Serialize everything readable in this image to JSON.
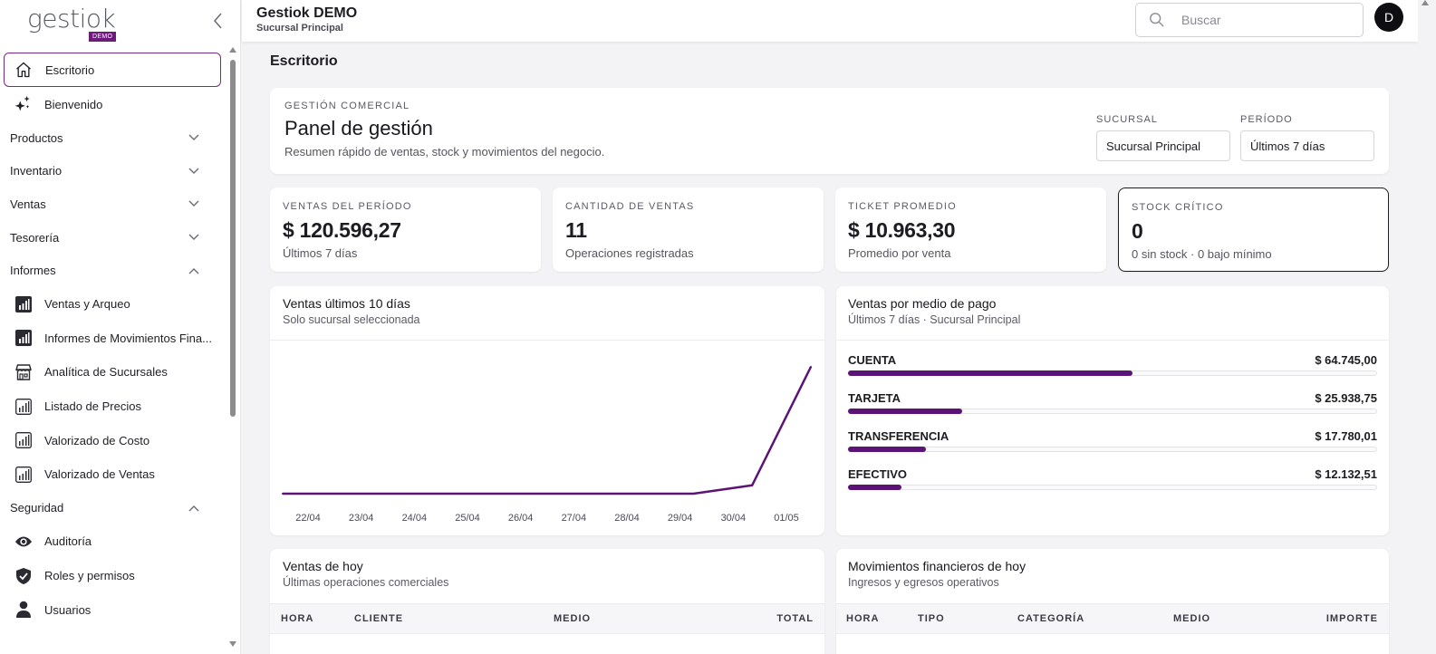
{
  "app": {
    "logo_text": "gestiok",
    "logo_badge": "DEMO",
    "title": "Gestiok DEMO",
    "subtitle": "Sucursal Principal",
    "avatar_initial": "D"
  },
  "search": {
    "placeholder": "Buscar"
  },
  "sidebar": {
    "items": [
      {
        "label": "Escritorio",
        "icon": "home-icon",
        "active": true
      },
      {
        "label": "Bienvenido",
        "icon": "sparkles-icon"
      }
    ],
    "groups": [
      {
        "label": "Productos",
        "expanded": false
      },
      {
        "label": "Inventario",
        "expanded": false
      },
      {
        "label": "Ventas",
        "expanded": false
      },
      {
        "label": "Tesorería",
        "expanded": false
      },
      {
        "label": "Informes",
        "expanded": true,
        "items": [
          {
            "label": "Ventas y Arqueo",
            "icon": "bar-chart-filled-icon"
          },
          {
            "label": "Informes de Movimientos Fina...",
            "icon": "bar-chart-filled-icon"
          },
          {
            "label": "Analítica de Sucursales",
            "icon": "store-icon"
          },
          {
            "label": "Listado de Precios",
            "icon": "bar-chart-outline-icon"
          },
          {
            "label": "Valorizado de Costo",
            "icon": "bar-chart-outline-icon"
          },
          {
            "label": "Valorizado de Ventas",
            "icon": "bar-chart-outline-icon"
          }
        ]
      },
      {
        "label": "Seguridad",
        "expanded": true,
        "items": [
          {
            "label": "Auditoría",
            "icon": "eye-icon"
          },
          {
            "label": "Roles y permisos",
            "icon": "shield-check-icon"
          },
          {
            "label": "Usuarios",
            "icon": "user-icon"
          }
        ]
      }
    ]
  },
  "page": {
    "title": "Escritorio"
  },
  "panel": {
    "eyebrow": "GESTIÓN COMERCIAL",
    "title": "Panel de gestión",
    "description": "Resumen rápido de ventas, stock y movimientos del negocio.",
    "sucursal_label": "SUCURSAL",
    "sucursal_value": "Sucursal Principal",
    "periodo_label": "PERÍODO",
    "periodo_value": "Últimos 7 días"
  },
  "kpis": [
    {
      "label": "VENTAS DEL PERÍODO",
      "value": "$ 120.596,27",
      "sub": "Últimos 7 días"
    },
    {
      "label": "CANTIDAD DE VENTAS",
      "value": "11",
      "sub": "Operaciones registradas"
    },
    {
      "label": "TICKET PROMEDIO",
      "value": "$ 10.963,30",
      "sub": "Promedio por venta"
    },
    {
      "label": "STOCK CRÍTICO",
      "value": "0",
      "sub": "0 sin stock · 0 bajo mínimo"
    }
  ],
  "sales_chart": {
    "title": "Ventas últimos 10 días",
    "subtitle": "Solo sucursal seleccionada"
  },
  "chart_data": {
    "type": "line",
    "title": "Ventas últimos 10 días",
    "subtitle": "Solo sucursal seleccionada",
    "categories": [
      "22/04",
      "23/04",
      "24/04",
      "25/04",
      "26/04",
      "27/04",
      "28/04",
      "29/04",
      "30/04",
      "01/05"
    ],
    "series": [
      {
        "values": [
          0,
          0,
          0,
          0,
          0,
          0,
          0,
          0,
          7500,
          113000
        ]
      }
    ],
    "ylim": [
      0,
      113000
    ],
    "grid": false,
    "color": "#5b1476"
  },
  "payments": {
    "title": "Ventas por medio de pago",
    "subtitle": "Últimos 7 días · Sucursal Principal",
    "rows": [
      {
        "name": "CUENTA",
        "amount": "$ 64.745,00",
        "value": 64745.0
      },
      {
        "name": "TARJETA",
        "amount": "$ 25.938,75",
        "value": 25938.75
      },
      {
        "name": "TRANSFERENCIA",
        "amount": "$ 17.780,01",
        "value": 17780.01
      },
      {
        "name": "EFECTIVO",
        "amount": "$ 12.132,51",
        "value": 12132.51
      }
    ]
  },
  "today_sales": {
    "title": "Ventas de hoy",
    "subtitle": "Últimas operaciones comerciales",
    "columns": [
      "HORA",
      "CLIENTE",
      "MEDIO",
      "TOTAL"
    ]
  },
  "today_movements": {
    "title": "Movimientos financieros de hoy",
    "subtitle": "Ingresos y egresos operativos",
    "columns": [
      "HORA",
      "TIPO",
      "CATEGORÍA",
      "MEDIO",
      "IMPORTE"
    ]
  },
  "colors": {
    "accent": "#6d1b7b",
    "bar": "#5b1476"
  }
}
